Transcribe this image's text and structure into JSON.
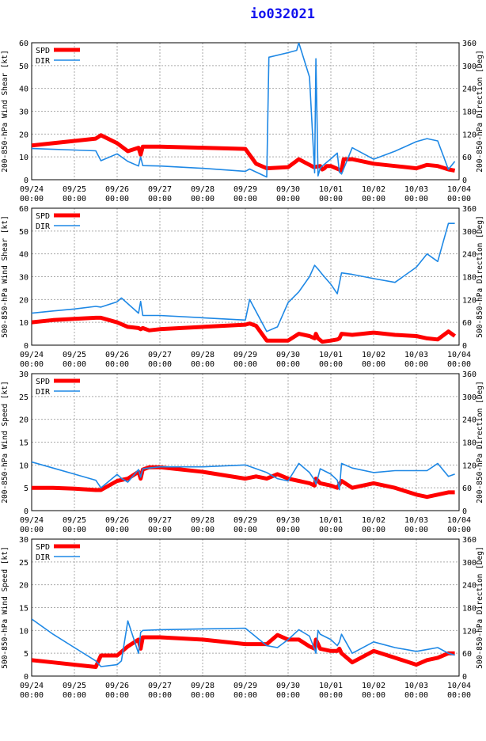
{
  "title": "io032021",
  "colors": {
    "spd": "#ff0000",
    "dir": "#1e88e5",
    "axis": "#000000",
    "grid": "#aaaaaa",
    "title": "#1010ee"
  },
  "legend": {
    "spd": "SPD",
    "dir": "DIR"
  },
  "x_ticks": [
    [
      "09/24",
      "00:00"
    ],
    [
      "09/25",
      "00:00"
    ],
    [
      "09/26",
      "00:00"
    ],
    [
      "09/27",
      "00:00"
    ],
    [
      "09/28",
      "00:00"
    ],
    [
      "09/29",
      "00:00"
    ],
    [
      "09/30",
      "00:00"
    ],
    [
      "10/01",
      "00:00"
    ],
    [
      "10/02",
      "00:00"
    ],
    [
      "10/03",
      "00:00"
    ],
    [
      "10/04",
      "00:00"
    ]
  ],
  "chart_data": [
    {
      "type": "line",
      "ylabel_left": "200-850-hPa Wind Shear [kt]",
      "ylabel_right": "200-850-hPa Direction [Deg]",
      "xlim": [
        0,
        10
      ],
      "ylim_left": [
        0,
        60
      ],
      "yticks_left": [
        0,
        10,
        20,
        30,
        40,
        50,
        60
      ],
      "ylim_right": [
        0,
        360
      ],
      "yticks_right": [
        0,
        60,
        120,
        180,
        240,
        300,
        360
      ],
      "series": [
        {
          "name": "SPD",
          "axis": "left",
          "x": [
            0,
            0.5,
            1.0,
            1.5,
            1.62,
            2.0,
            2.25,
            2.5,
            2.55,
            2.6,
            3.0,
            4.0,
            5.0,
            5.25,
            5.5,
            6.0,
            6.25,
            6.4,
            6.6,
            6.75,
            6.8,
            6.85,
            6.9,
            7.0,
            7.25,
            7.3,
            7.5,
            8.0,
            8.5,
            9.0,
            9.25,
            9.5,
            9.75,
            9.9
          ],
          "y": [
            15,
            16,
            17,
            18,
            19.5,
            16,
            12.5,
            14,
            11,
            14.5,
            14.5,
            14,
            13.5,
            7,
            5,
            5.5,
            9,
            7.5,
            5.5,
            6,
            4.5,
            5,
            6,
            6,
            4,
            9,
            9,
            7,
            6,
            5,
            6.5,
            6,
            4.5,
            4
          ]
        },
        {
          "name": "DIR",
          "axis": "right",
          "x": [
            0,
            0.5,
            1.0,
            1.5,
            1.62,
            2.0,
            2.25,
            2.5,
            2.55,
            2.6,
            3.0,
            4.0,
            5.0,
            5.1,
            5.5,
            5.55,
            6.0,
            6.2,
            6.25,
            6.5,
            6.62,
            6.65,
            6.68,
            6.7,
            6.75,
            6.8,
            7.0,
            7.15,
            7.2,
            7.25,
            7.5,
            8.0,
            8.5,
            9.0,
            9.25,
            9.5,
            9.75,
            9.9
          ],
          "y": [
            82,
            80,
            78,
            76,
            50,
            68,
            48,
            36,
            60,
            37,
            36,
            30,
            22,
            28,
            7,
            322,
            334,
            340,
            360,
            270,
            18,
            318,
            140,
            10,
            30,
            36,
            55,
            70,
            20,
            15,
            84,
            54,
            75,
            100,
            108,
            102,
            27,
            48
          ]
        }
      ]
    },
    {
      "type": "line",
      "ylabel_left": "500-850-hPa Wind Shear [kt]",
      "ylabel_right": "500-850-hPa Direction [Deg]",
      "xlim": [
        0,
        10
      ],
      "ylim_left": [
        0,
        60
      ],
      "yticks_left": [
        0,
        10,
        20,
        30,
        40,
        50,
        60
      ],
      "ylim_right": [
        0,
        360
      ],
      "yticks_right": [
        0,
        60,
        120,
        180,
        240,
        300,
        360
      ],
      "series": [
        {
          "name": "SPD",
          "axis": "left",
          "x": [
            0,
            0.5,
            1.0,
            1.5,
            1.62,
            2.0,
            2.25,
            2.5,
            2.55,
            2.6,
            2.75,
            3.0,
            4.0,
            5.0,
            5.1,
            5.25,
            5.5,
            6.0,
            6.25,
            6.5,
            6.62,
            6.65,
            6.7,
            6.8,
            7.0,
            7.15,
            7.2,
            7.25,
            7.5,
            8.0,
            8.5,
            9.0,
            9.25,
            9.5,
            9.75,
            9.9
          ],
          "y": [
            10,
            11,
            11.5,
            12,
            12,
            10,
            8,
            7.5,
            7,
            7.5,
            6.5,
            7,
            8,
            9,
            9.5,
            8.5,
            2,
            2,
            5,
            4,
            3,
            5,
            3,
            1.5,
            2,
            2.5,
            3,
            5,
            4.5,
            5.5,
            4.5,
            4,
            3,
            2.5,
            6,
            4
          ]
        },
        {
          "name": "DIR",
          "axis": "right",
          "x": [
            0,
            0.5,
            1.0,
            1.5,
            1.62,
            2.0,
            2.1,
            2.5,
            2.55,
            2.6,
            3.0,
            4.0,
            5.0,
            5.1,
            5.5,
            5.75,
            6.0,
            6.25,
            6.5,
            6.62,
            6.7,
            6.8,
            7.0,
            7.15,
            7.25,
            7.5,
            8.0,
            8.5,
            9.0,
            9.25,
            9.5,
            9.75,
            9.9
          ],
          "y": [
            84,
            90,
            95,
            102,
            100,
            114,
            124,
            84,
            115,
            78,
            78,
            72,
            66,
            120,
            36,
            48,
            112,
            140,
            180,
            210,
            200,
            186,
            160,
            135,
            190,
            186,
            175,
            165,
            205,
            240,
            220,
            320,
            320
          ]
        }
      ]
    },
    {
      "type": "line",
      "ylabel_left": "200-850-hPa Wind Speed [kt]",
      "ylabel_right": "200-850-hPa Direction [Deg]",
      "xlim": [
        0,
        10
      ],
      "ylim_left": [
        0,
        30
      ],
      "yticks_left": [
        0,
        5,
        10,
        15,
        20,
        25,
        30
      ],
      "ylim_right": [
        0,
        360
      ],
      "yticks_right": [
        0,
        60,
        120,
        180,
        240,
        300,
        360
      ],
      "series": [
        {
          "name": "SPD",
          "axis": "left",
          "x": [
            0,
            0.5,
            1.0,
            1.5,
            1.62,
            2.0,
            2.25,
            2.5,
            2.55,
            2.6,
            2.75,
            3.0,
            4.0,
            5.0,
            5.25,
            5.5,
            5.75,
            6.0,
            6.25,
            6.5,
            6.62,
            6.65,
            6.7,
            6.75,
            7.0,
            7.15,
            7.25,
            7.5,
            8.0,
            8.5,
            9.0,
            9.25,
            9.5,
            9.75,
            9.9
          ],
          "y": [
            5,
            5,
            4.8,
            4.5,
            4.5,
            6.5,
            7,
            8.5,
            7,
            9,
            9.5,
            9.5,
            8.5,
            7,
            7.5,
            7,
            8,
            7,
            6.5,
            6,
            5.5,
            7,
            6.5,
            6,
            5.5,
            5,
            6.5,
            5,
            6,
            5,
            3.5,
            3,
            3.5,
            4,
            4
          ]
        },
        {
          "name": "DIR",
          "axis": "right",
          "x": [
            0,
            0.5,
            1.0,
            1.5,
            1.62,
            2.0,
            2.1,
            2.25,
            2.5,
            2.55,
            2.6,
            3.0,
            4.0,
            5.0,
            5.5,
            5.75,
            6.0,
            6.25,
            6.5,
            6.62,
            6.65,
            6.7,
            6.75,
            7.0,
            7.15,
            7.2,
            7.25,
            7.5,
            8.0,
            8.5,
            9.0,
            9.25,
            9.5,
            9.75,
            9.9
          ],
          "y": [
            128,
            112,
            96,
            80,
            60,
            95,
            85,
            75,
            108,
            88,
            110,
            115,
            115,
            120,
            100,
            84,
            78,
            124,
            100,
            80,
            70,
            88,
            110,
            96,
            80,
            55,
            124,
            112,
            100,
            105,
            105,
            105,
            124,
            90,
            96
          ]
        }
      ]
    },
    {
      "type": "line",
      "ylabel_left": "500-850-hPa Wind Speed [kt]",
      "ylabel_right": "500-850-hPa Direction [Deg]",
      "xlim": [
        0,
        10
      ],
      "ylim_left": [
        0,
        30
      ],
      "yticks_left": [
        0,
        5,
        10,
        15,
        20,
        25,
        30
      ],
      "ylim_right": [
        0,
        360
      ],
      "yticks_right": [
        0,
        60,
        120,
        180,
        240,
        300,
        360
      ],
      "series": [
        {
          "name": "SPD",
          "axis": "left",
          "x": [
            0,
            0.5,
            1.0,
            1.5,
            1.62,
            2.0,
            2.25,
            2.5,
            2.55,
            2.6,
            2.75,
            3.0,
            4.0,
            5.0,
            5.25,
            5.5,
            5.75,
            6.0,
            6.25,
            6.5,
            6.62,
            6.65,
            6.7,
            6.75,
            7.0,
            7.15,
            7.2,
            7.25,
            7.5,
            8.0,
            8.5,
            9.0,
            9.25,
            9.5,
            9.75,
            9.9
          ],
          "y": [
            3.5,
            3,
            2.5,
            2,
            4.5,
            4.5,
            6.5,
            8,
            6,
            8.5,
            8.5,
            8.5,
            8,
            7,
            7,
            7,
            9,
            8,
            8,
            6.5,
            6,
            8,
            7,
            6,
            5.5,
            5.5,
            6,
            5,
            3,
            5.5,
            4,
            2.5,
            3.5,
            4,
            5,
            5
          ]
        },
        {
          "name": "DIR",
          "axis": "right",
          "x": [
            0,
            0.5,
            1.0,
            1.5,
            1.62,
            2.0,
            2.1,
            2.25,
            2.5,
            2.55,
            2.6,
            3.0,
            4.0,
            5.0,
            5.5,
            5.75,
            6.0,
            6.25,
            6.5,
            6.62,
            6.65,
            6.7,
            6.75,
            7.0,
            7.15,
            7.2,
            7.25,
            7.5,
            8.0,
            8.5,
            9.0,
            9.25,
            9.5,
            9.75,
            9.9
          ],
          "y": [
            150,
            110,
            75,
            40,
            25,
            30,
            40,
            145,
            60,
            115,
            120,
            122,
            124,
            126,
            80,
            75,
            96,
            122,
            105,
            70,
            60,
            120,
            110,
            96,
            80,
            90,
            110,
            60,
            90,
            75,
            65,
            70,
            75,
            60,
            55
          ]
        }
      ]
    }
  ]
}
